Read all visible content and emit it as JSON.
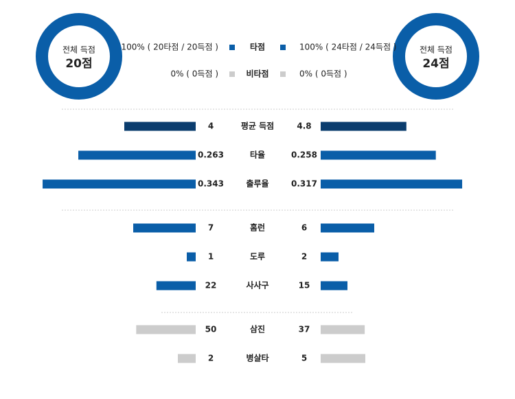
{
  "donuts": [
    {
      "title": "전체 득점",
      "total": "20점"
    },
    {
      "title": "전체 득점",
      "total": "24점"
    }
  ],
  "legend": [
    {
      "label": "타점",
      "left": "100% ( 20타점 / 20득점 )",
      "right": "100% ( 24타점 / 24득점 )",
      "color": "#0a5ea8"
    },
    {
      "label": "비타점",
      "left": "0% ( 0득점 )",
      "right": "0% ( 0득점 )",
      "color": "#cccccc"
    }
  ],
  "groups": [
    {
      "rows": [
        {
          "label": "평균 득점",
          "left": 4,
          "right": 4.8,
          "xlim": [
            0,
            10
          ],
          "color": "#0b3d6e"
        },
        {
          "label": "타율",
          "left": 0.263,
          "right": 0.258,
          "xlim": [
            0,
            0.4
          ],
          "color": "#0a5ea8"
        },
        {
          "label": "출루율",
          "left": 0.343,
          "right": 0.317,
          "xlim": [
            0,
            0.4
          ],
          "color": "#0a5ea8"
        }
      ]
    },
    {
      "rows": [
        {
          "label": "홈런",
          "left": 7,
          "right": 6,
          "xlim": [
            0,
            20
          ],
          "color": "#0a5ea8"
        },
        {
          "label": "도루",
          "left": 1,
          "right": 2,
          "xlim": [
            0,
            20
          ],
          "color": "#0a5ea8"
        },
        {
          "label": "사사구",
          "left": 22,
          "right": 15,
          "xlim": [
            0,
            100
          ],
          "color": "#0a5ea8"
        }
      ]
    },
    {
      "rows": [
        {
          "label": "삼진",
          "left": 50,
          "right": 37,
          "xlim": [
            0,
            150
          ],
          "color": "#cccccc"
        },
        {
          "label": "병살타",
          "left": 2,
          "right": 5,
          "xlim": [
            0,
            20
          ],
          "color": "#cccccc"
        }
      ]
    }
  ]
}
